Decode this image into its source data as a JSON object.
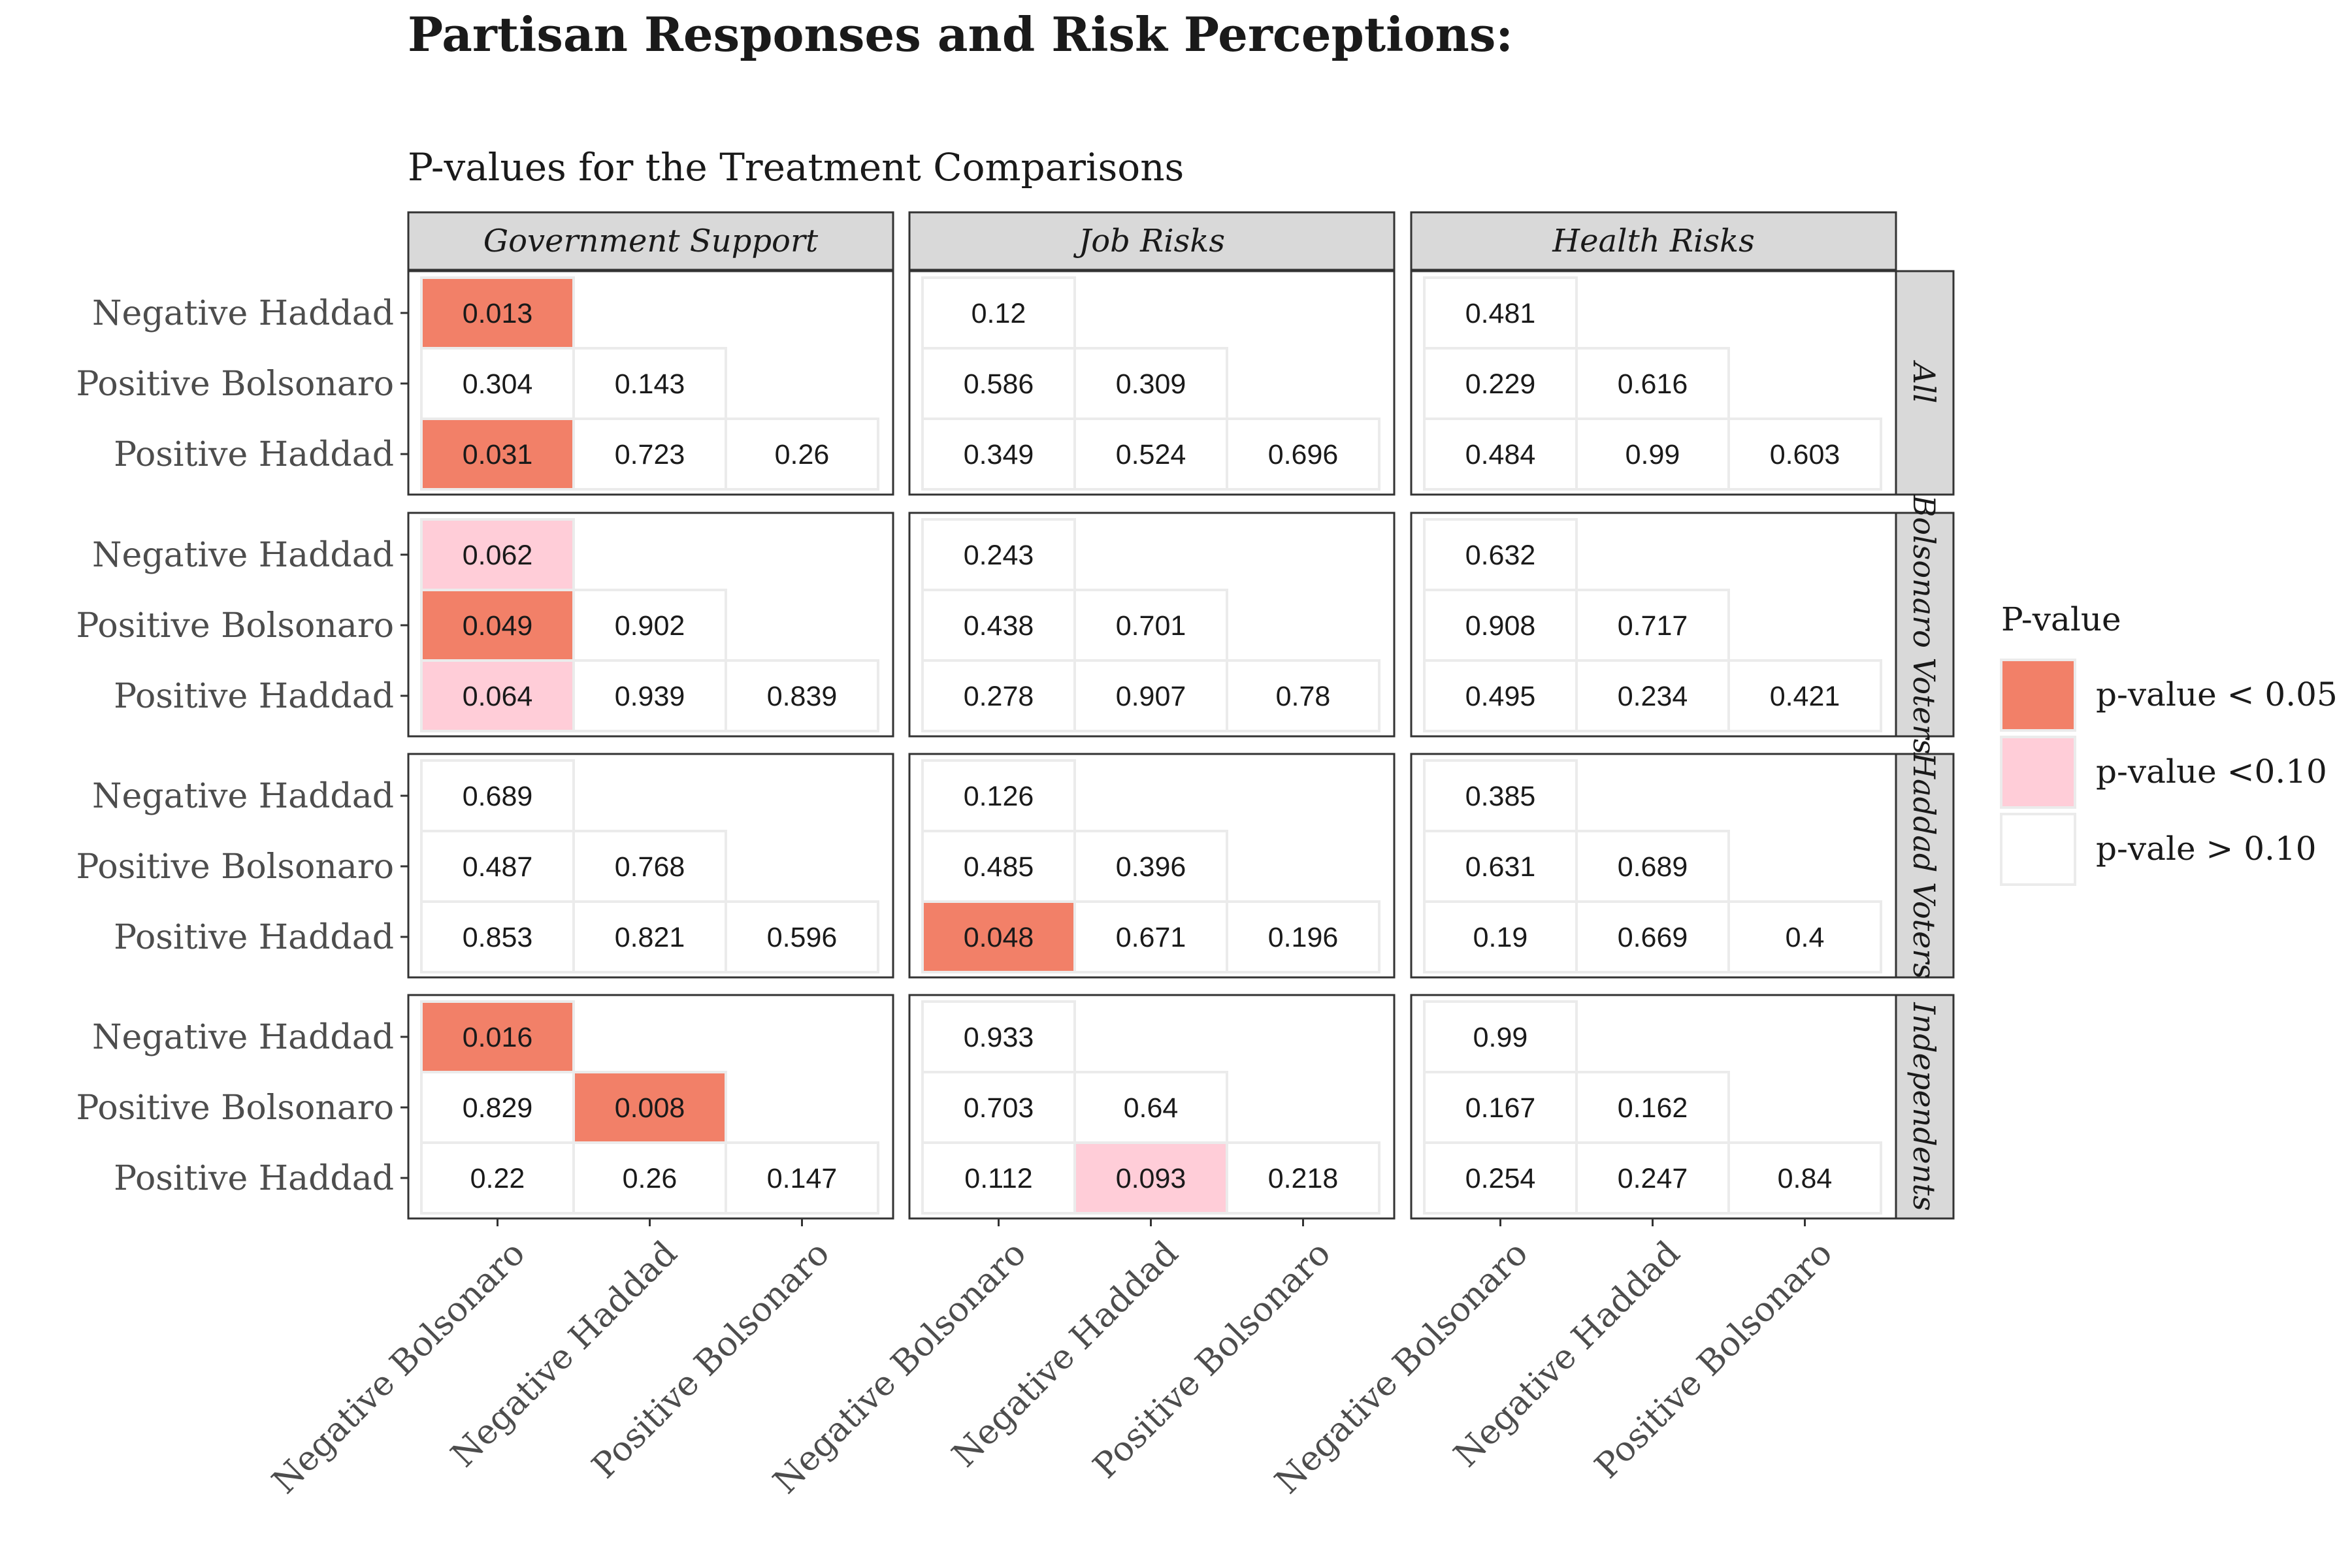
{
  "chart_data": {
    "type": "heatmap",
    "title": "Partisan Responses and Risk Perceptions:",
    "subtitle": "P-values for the Treatment Comparisons",
    "columns": [
      "Government Support",
      "Job Risks",
      "Health Risks"
    ],
    "rows": [
      "All",
      "Bolsonaro Voters",
      "Haddad Voters",
      "Independents"
    ],
    "y_categories": [
      "Negative Haddad",
      "Positive Bolsonaro",
      "Positive Haddad"
    ],
    "x_categories": [
      "Negative Bolsonaro",
      "Negative Haddad",
      "Positive Bolsonaro"
    ],
    "legend": {
      "title": "P-value",
      "position": "right",
      "items": [
        {
          "label": "p-value < 0.05",
          "color": "#F28068"
        },
        {
          "label": "p-value <0.10",
          "color": "#FFCDD8"
        },
        {
          "label": "p-vale > 0.10",
          "color": "#FFFFFF"
        }
      ]
    },
    "panels": [
      {
        "row": "All",
        "column": "Government Support",
        "values": [
          [
            0.013
          ],
          [
            0.304,
            0.143
          ],
          [
            0.031,
            0.723,
            0.26
          ]
        ]
      },
      {
        "row": "All",
        "column": "Job Risks",
        "values": [
          [
            0.12
          ],
          [
            0.586,
            0.309
          ],
          [
            0.349,
            0.524,
            0.696
          ]
        ]
      },
      {
        "row": "All",
        "column": "Health Risks",
        "values": [
          [
            0.481
          ],
          [
            0.229,
            0.616
          ],
          [
            0.484,
            0.99,
            0.603
          ]
        ]
      },
      {
        "row": "Bolsonaro Voters",
        "column": "Government Support",
        "values": [
          [
            0.062
          ],
          [
            0.049,
            0.902
          ],
          [
            0.064,
            0.939,
            0.839
          ]
        ]
      },
      {
        "row": "Bolsonaro Voters",
        "column": "Job Risks",
        "values": [
          [
            0.243
          ],
          [
            0.438,
            0.701
          ],
          [
            0.278,
            0.907,
            0.78
          ]
        ]
      },
      {
        "row": "Bolsonaro Voters",
        "column": "Health Risks",
        "values": [
          [
            0.632
          ],
          [
            0.908,
            0.717
          ],
          [
            0.495,
            0.234,
            0.421
          ]
        ]
      },
      {
        "row": "Haddad Voters",
        "column": "Government Support",
        "values": [
          [
            0.689
          ],
          [
            0.487,
            0.768
          ],
          [
            0.853,
            0.821,
            0.596
          ]
        ]
      },
      {
        "row": "Haddad Voters",
        "column": "Job Risks",
        "values": [
          [
            0.126
          ],
          [
            0.485,
            0.396
          ],
          [
            0.048,
            0.671,
            0.196
          ]
        ]
      },
      {
        "row": "Haddad Voters",
        "column": "Health Risks",
        "values": [
          [
            0.385
          ],
          [
            0.631,
            0.689
          ],
          [
            0.19,
            0.669,
            0.4
          ]
        ]
      },
      {
        "row": "Independents",
        "column": "Government Support",
        "values": [
          [
            0.016
          ],
          [
            0.829,
            0.008
          ],
          [
            0.22,
            0.26,
            0.147
          ]
        ]
      },
      {
        "row": "Independents",
        "column": "Job Risks",
        "values": [
          [
            0.933
          ],
          [
            0.703,
            0.64
          ],
          [
            0.112,
            0.093,
            0.218
          ]
        ]
      },
      {
        "row": "Independents",
        "column": "Health Risks",
        "values": [
          [
            0.99
          ],
          [
            0.167,
            0.162
          ],
          [
            0.254,
            0.247,
            0.84
          ]
        ]
      }
    ],
    "colors": {
      "strip_fill": "#D9D9D9",
      "panel_border": "#333333",
      "cell_border": "#EBEBEB",
      "text": "#1A1A1A",
      "axis_text": "#4D4D4D"
    }
  }
}
